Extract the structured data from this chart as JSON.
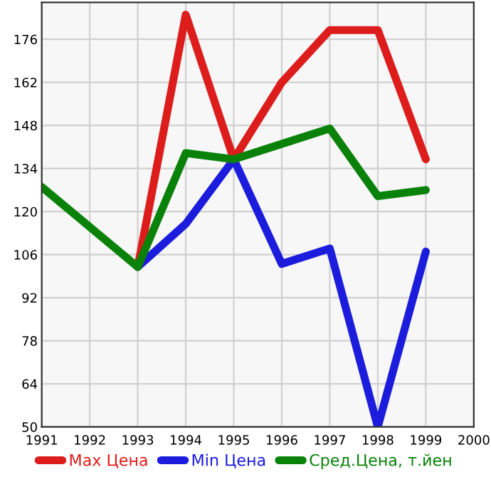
{
  "chart_data": {
    "type": "line",
    "x": [
      1991,
      1992,
      1993,
      1994,
      1995,
      1996,
      1997,
      1998,
      1999
    ],
    "series": [
      {
        "name": "Max Цена",
        "color": "#dd1c1c",
        "values": [
          null,
          null,
          102,
          184,
          137,
          162,
          179,
          179,
          137
        ]
      },
      {
        "name": "Min Цена",
        "color": "#1c1cdd",
        "values": [
          null,
          null,
          102,
          116,
          137,
          103,
          108,
          50,
          107
        ]
      },
      {
        "name": "Сред.Цена, т.йен",
        "color": "#0a820a",
        "values": [
          128,
          115,
          102,
          139,
          137,
          142,
          147,
          125,
          127
        ]
      }
    ],
    "xlim": [
      1991,
      2000
    ],
    "xticks": [
      1991,
      1992,
      1993,
      1994,
      1995,
      1996,
      1997,
      1998,
      1999,
      2000
    ],
    "ylim": [
      50,
      188
    ],
    "yticks": [
      50,
      64,
      78,
      92,
      106,
      120,
      134,
      148,
      162,
      176
    ],
    "grid": true,
    "legend": "bottom",
    "marker": "none",
    "line_style": "solid"
  }
}
